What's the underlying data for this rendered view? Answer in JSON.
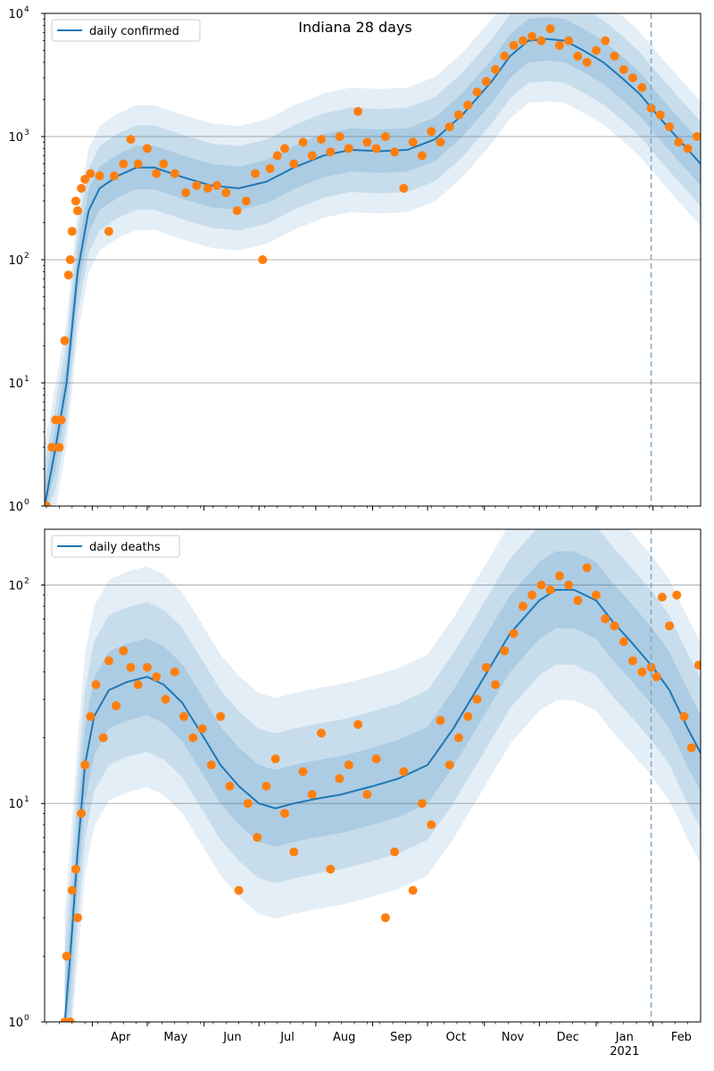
{
  "title": "Indiana 28 days",
  "colors": {
    "line": "#1f77b4",
    "points": "#ff7f0e",
    "band": "#1f77b4",
    "grid": "#b0b0b0",
    "forecast_line": "#7fa6c8"
  },
  "chart_data": [
    {
      "type": "line",
      "panel": "top",
      "title": "Indiana 28 days",
      "legend": "daily confirmed",
      "legend_position": "top-left",
      "yscale": "log",
      "ylim": [
        1,
        10000
      ],
      "ytick_labels": [
        "10^0",
        "10^1",
        "10^2",
        "10^3",
        "10^4"
      ],
      "xlim": [
        "2020-03-06",
        "2021-02-27"
      ],
      "grid": "y-major",
      "forecast_start": "2021-01-31",
      "series": [
        {
          "name": "daily confirmed",
          "kind": "model-median",
          "x": [
            "2020-03-06",
            "2020-03-12",
            "2020-03-18",
            "2020-03-24",
            "2020-03-30",
            "2020-04-05",
            "2020-04-15",
            "2020-04-25",
            "2020-05-05",
            "2020-05-20",
            "2020-06-05",
            "2020-06-20",
            "2020-07-05",
            "2020-07-20",
            "2020-08-05",
            "2020-08-20",
            "2020-09-05",
            "2020-09-20",
            "2020-10-05",
            "2020-10-20",
            "2020-11-05",
            "2020-11-15",
            "2020-11-25",
            "2020-12-05",
            "2020-12-15",
            "2020-12-25",
            "2021-01-05",
            "2021-01-15",
            "2021-01-25",
            "2021-02-05",
            "2021-02-15",
            "2021-02-27"
          ],
          "y": [
            1,
            3,
            10,
            80,
            250,
            380,
            480,
            560,
            560,
            470,
            400,
            380,
            430,
            560,
            700,
            780,
            760,
            780,
            950,
            1500,
            2800,
            4500,
            6000,
            6200,
            6000,
            5000,
            4000,
            3000,
            2200,
            1400,
            950,
            600
          ]
        },
        {
          "name": "",
          "kind": "observed",
          "x": [
            "2020-03-07",
            "2020-03-10",
            "2020-03-12",
            "2020-03-14",
            "2020-03-15",
            "2020-03-17",
            "2020-03-19",
            "2020-03-20",
            "2020-03-21",
            "2020-03-23",
            "2020-03-24",
            "2020-03-26",
            "2020-03-28",
            "2020-03-31",
            "2020-04-05",
            "2020-04-10",
            "2020-04-13",
            "2020-04-18",
            "2020-04-22",
            "2020-04-26",
            "2020-05-01",
            "2020-05-06",
            "2020-05-10",
            "2020-05-16",
            "2020-05-22",
            "2020-05-28",
            "2020-06-03",
            "2020-06-08",
            "2020-06-13",
            "2020-06-19",
            "2020-06-24",
            "2020-06-29",
            "2020-07-03",
            "2020-07-07",
            "2020-07-11",
            "2020-07-15",
            "2020-07-20",
            "2020-07-25",
            "2020-07-30",
            "2020-08-04",
            "2020-08-09",
            "2020-08-14",
            "2020-08-19",
            "2020-08-24",
            "2020-08-29",
            "2020-09-03",
            "2020-09-08",
            "2020-09-13",
            "2020-09-18",
            "2020-09-23",
            "2020-09-28",
            "2020-10-03",
            "2020-10-08",
            "2020-10-13",
            "2020-10-18",
            "2020-10-23",
            "2020-10-28",
            "2020-11-02",
            "2020-11-07",
            "2020-11-12",
            "2020-11-17",
            "2020-11-22",
            "2020-11-27",
            "2020-12-02",
            "2020-12-07",
            "2020-12-12",
            "2020-12-17",
            "2020-12-22",
            "2020-12-27",
            "2021-01-01",
            "2021-01-06",
            "2021-01-11",
            "2021-01-16",
            "2021-01-21",
            "2021-01-26",
            "2021-01-31",
            "2021-02-05",
            "2021-02-10",
            "2021-02-15",
            "2021-02-20",
            "2021-02-25"
          ],
          "y": [
            1,
            3,
            5,
            3,
            5,
            22,
            75,
            100,
            170,
            300,
            250,
            380,
            450,
            500,
            480,
            170,
            480,
            600,
            950,
            600,
            800,
            500,
            600,
            500,
            350,
            400,
            380,
            400,
            350,
            250,
            300,
            500,
            100,
            550,
            700,
            800,
            600,
            900,
            700,
            950,
            750,
            1000,
            800,
            1600,
            900,
            800,
            1000,
            750,
            380,
            900,
            700,
            1100,
            900,
            1200,
            1500,
            1800,
            2300,
            2800,
            3500,
            4500,
            5500,
            6000,
            6500,
            6000,
            7500,
            5500,
            6000,
            4500,
            4000,
            5000,
            6000,
            4500,
            3500,
            3000,
            2500,
            1700,
            1500,
            1200,
            900,
            800,
            1000
          ]
        }
      ]
    },
    {
      "type": "line",
      "panel": "bottom",
      "legend": "daily deaths",
      "legend_position": "top-left",
      "yscale": "log",
      "ylim": [
        1,
        180
      ],
      "ytick_labels": [
        "10^0",
        "10^1",
        "10^2"
      ],
      "xlim": [
        "2020-03-06",
        "2021-02-27"
      ],
      "x_tick_labels": [
        "Apr",
        "May",
        "Jun",
        "Jul",
        "Aug",
        "Sep",
        "Oct",
        "Nov",
        "Dec",
        "Jan",
        "Feb"
      ],
      "x_tick_dates": [
        "2020-04-01",
        "2020-05-01",
        "2020-06-01",
        "2020-07-01",
        "2020-08-01",
        "2020-09-01",
        "2020-10-01",
        "2020-11-01",
        "2020-12-01",
        "2021-01-01",
        "2021-02-01"
      ],
      "x_sub_label": "2021",
      "grid": "y-major",
      "forecast_start": "2021-01-31",
      "series": [
        {
          "name": "daily deaths",
          "kind": "model-median",
          "x": [
            "2020-03-17",
            "2020-03-20",
            "2020-03-24",
            "2020-03-28",
            "2020-04-02",
            "2020-04-10",
            "2020-04-20",
            "2020-05-01",
            "2020-05-10",
            "2020-05-20",
            "2020-06-01",
            "2020-06-10",
            "2020-06-20",
            "2020-07-01",
            "2020-07-10",
            "2020-07-20",
            "2020-08-01",
            "2020-08-15",
            "2020-09-01",
            "2020-09-15",
            "2020-10-01",
            "2020-10-15",
            "2020-11-01",
            "2020-11-15",
            "2020-12-01",
            "2020-12-10",
            "2020-12-20",
            "2021-01-01",
            "2021-01-10",
            "2021-01-20",
            "2021-02-01",
            "2021-02-10",
            "2021-02-20",
            "2021-02-27"
          ],
          "y": [
            1,
            2,
            6,
            15,
            25,
            33,
            36,
            38,
            35,
            29,
            20,
            15,
            12,
            10,
            9.5,
            10,
            10.5,
            11,
            12,
            13,
            15,
            22,
            38,
            60,
            85,
            95,
            95,
            85,
            68,
            55,
            42,
            33,
            22,
            17
          ]
        },
        {
          "name": "",
          "kind": "observed",
          "x": [
            "2020-03-17",
            "2020-03-18",
            "2020-03-20",
            "2020-03-21",
            "2020-03-23",
            "2020-03-24",
            "2020-03-26",
            "2020-03-28",
            "2020-03-31",
            "2020-04-03",
            "2020-04-07",
            "2020-04-10",
            "2020-04-14",
            "2020-04-18",
            "2020-04-22",
            "2020-04-26",
            "2020-05-01",
            "2020-05-06",
            "2020-05-11",
            "2020-05-16",
            "2020-05-21",
            "2020-05-26",
            "2020-05-31",
            "2020-06-05",
            "2020-06-10",
            "2020-06-15",
            "2020-06-20",
            "2020-06-25",
            "2020-06-30",
            "2020-07-05",
            "2020-07-10",
            "2020-07-15",
            "2020-07-20",
            "2020-07-25",
            "2020-07-30",
            "2020-08-04",
            "2020-08-09",
            "2020-08-14",
            "2020-08-19",
            "2020-08-24",
            "2020-08-29",
            "2020-09-03",
            "2020-09-08",
            "2020-09-13",
            "2020-09-18",
            "2020-09-23",
            "2020-09-28",
            "2020-10-03",
            "2020-10-08",
            "2020-10-13",
            "2020-10-18",
            "2020-10-23",
            "2020-10-28",
            "2020-11-02",
            "2020-11-07",
            "2020-11-12",
            "2020-11-17",
            "2020-11-22",
            "2020-11-27",
            "2020-12-02",
            "2020-12-07",
            "2020-12-12",
            "2020-12-17",
            "2020-12-22",
            "2020-12-27",
            "2021-01-01",
            "2021-01-06",
            "2021-01-11",
            "2021-01-16",
            "2021-01-21",
            "2021-01-26",
            "2021-01-31",
            "2021-02-03",
            "2021-02-06",
            "2021-02-10",
            "2021-02-14",
            "2021-02-18",
            "2021-02-22",
            "2021-02-26"
          ],
          "y": [
            1,
            2,
            1,
            4,
            5,
            3,
            9,
            15,
            25,
            35,
            20,
            45,
            28,
            50,
            42,
            35,
            42,
            38,
            30,
            40,
            25,
            20,
            22,
            15,
            25,
            12,
            4,
            10,
            7,
            12,
            16,
            9,
            6,
            14,
            11,
            21,
            5,
            13,
            15,
            23,
            11,
            16,
            3,
            6,
            14,
            4,
            10,
            8,
            24,
            15,
            20,
            25,
            30,
            42,
            35,
            50,
            60,
            80,
            90,
            100,
            95,
            110,
            100,
            85,
            120,
            90,
            70,
            65,
            55,
            45,
            40,
            42,
            38,
            88,
            65,
            90,
            25,
            18,
            43
          ]
        }
      ]
    }
  ]
}
